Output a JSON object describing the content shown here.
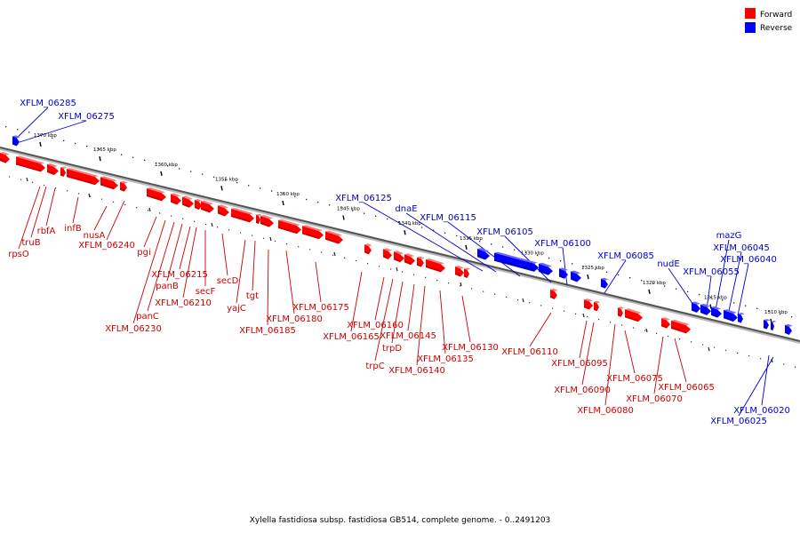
{
  "legend": {
    "forward": {
      "label": "Forward",
      "color": "#ff0000"
    },
    "reverse": {
      "label": "Reverse",
      "color": "#0000ff"
    }
  },
  "caption": "Xylella fastidiosa subsp. fastidiosa GB514, complete genome. - 0..2491203",
  "scale_labels": [
    "1370 kbp",
    "1365 kbp",
    "1360 kbp",
    "1355 kbp",
    "1350 kbp",
    "1345 kbp",
    "1340 kbp",
    "1335 kbp",
    "1330 kbp",
    "1325 kbp",
    "1320 kbp",
    "1315 kbp",
    "1310 kbp"
  ],
  "forward_labels": [
    "rpsO",
    "truB",
    "rbfA",
    "infB",
    "nusA",
    "XFLM_06240",
    "pgi",
    "XFLM_06230",
    "panC",
    "panB",
    "XFLM_06215",
    "secF",
    "XFLM_06210",
    "secD",
    "yajC",
    "tgt",
    "XFLM_06185",
    "XFLM_06180",
    "XFLM_06175",
    "XFLM_06165",
    "XFLM_06160",
    "trpC",
    "trpD",
    "XFLM_06145",
    "XFLM_06140",
    "XFLM_06135",
    "XFLM_06130",
    "XFLM_06110",
    "XFLM_06095",
    "XFLM_06090",
    "XFLM_06080",
    "XFLM_06075",
    "XFLM_06070",
    "XFLM_06065"
  ],
  "reverse_labels": [
    "XFLM_06285",
    "XFLM_06275",
    "XFLM_06125",
    "dnaE",
    "XFLM_06115",
    "XFLM_06105",
    "XFLM_06100",
    "XFLM_06085",
    "nudE",
    "XFLM_06055",
    "mazG",
    "XFLM_06045",
    "XFLM_06040",
    "XFLM_06020",
    "XFLM_06025"
  ]
}
